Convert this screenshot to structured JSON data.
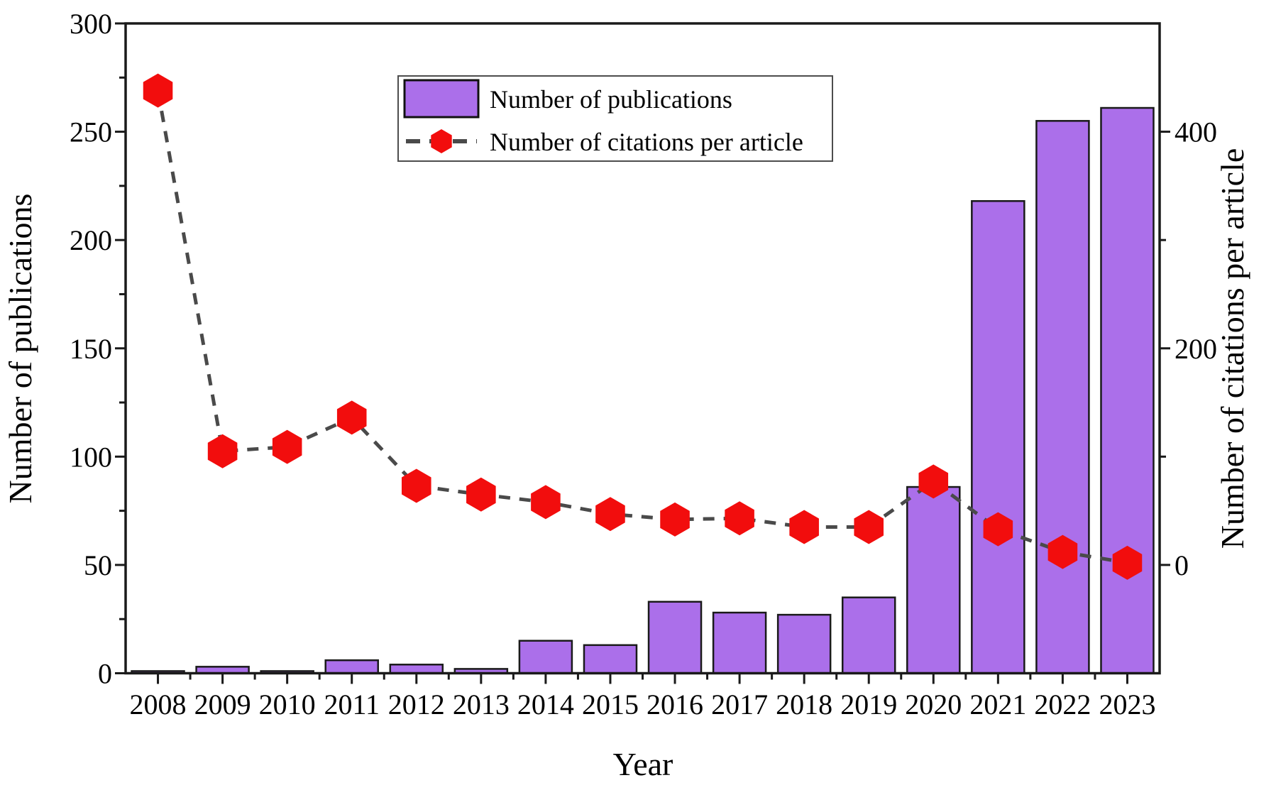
{
  "chart_data": {
    "type": "bar+line",
    "title": "",
    "xlabel": "Year",
    "ylabel_left": "Number of publications",
    "ylabel_right": "Number of citations per article",
    "categories": [
      "2008",
      "2009",
      "2010",
      "2011",
      "2012",
      "2013",
      "2014",
      "2015",
      "2016",
      "2017",
      "2018",
      "2019",
      "2020",
      "2021",
      "2022",
      "2023"
    ],
    "series": [
      {
        "name": "Number of publications",
        "type": "bar",
        "axis": "left",
        "color": "#AB6FEA",
        "edge_color": "#1a1a1a",
        "values": [
          1,
          3,
          1,
          6,
          4,
          2,
          15,
          13,
          33,
          28,
          27,
          35,
          86,
          218,
          255,
          261
        ]
      },
      {
        "name": "Number of citations per article",
        "type": "line",
        "axis": "right",
        "marker": "hexagon",
        "marker_color": "#F20D0D",
        "line_color": "#4a4a4a",
        "line_style": "dashed",
        "values": [
          438,
          105,
          109,
          136,
          73,
          65,
          58,
          47,
          42,
          43,
          35,
          35,
          77,
          33,
          12,
          2
        ]
      }
    ],
    "ylim_left": [
      0,
      300
    ],
    "ylim_right": [
      -100,
      500
    ],
    "yticks_left": [
      0,
      50,
      100,
      150,
      200,
      250,
      300
    ],
    "yticks_left_minor_step": 25,
    "yticks_right": [
      0,
      200,
      400
    ],
    "yticks_right_minor": [
      100,
      300
    ],
    "legend_position": "top-inside-left",
    "grid": false,
    "background": "#ffffff"
  }
}
